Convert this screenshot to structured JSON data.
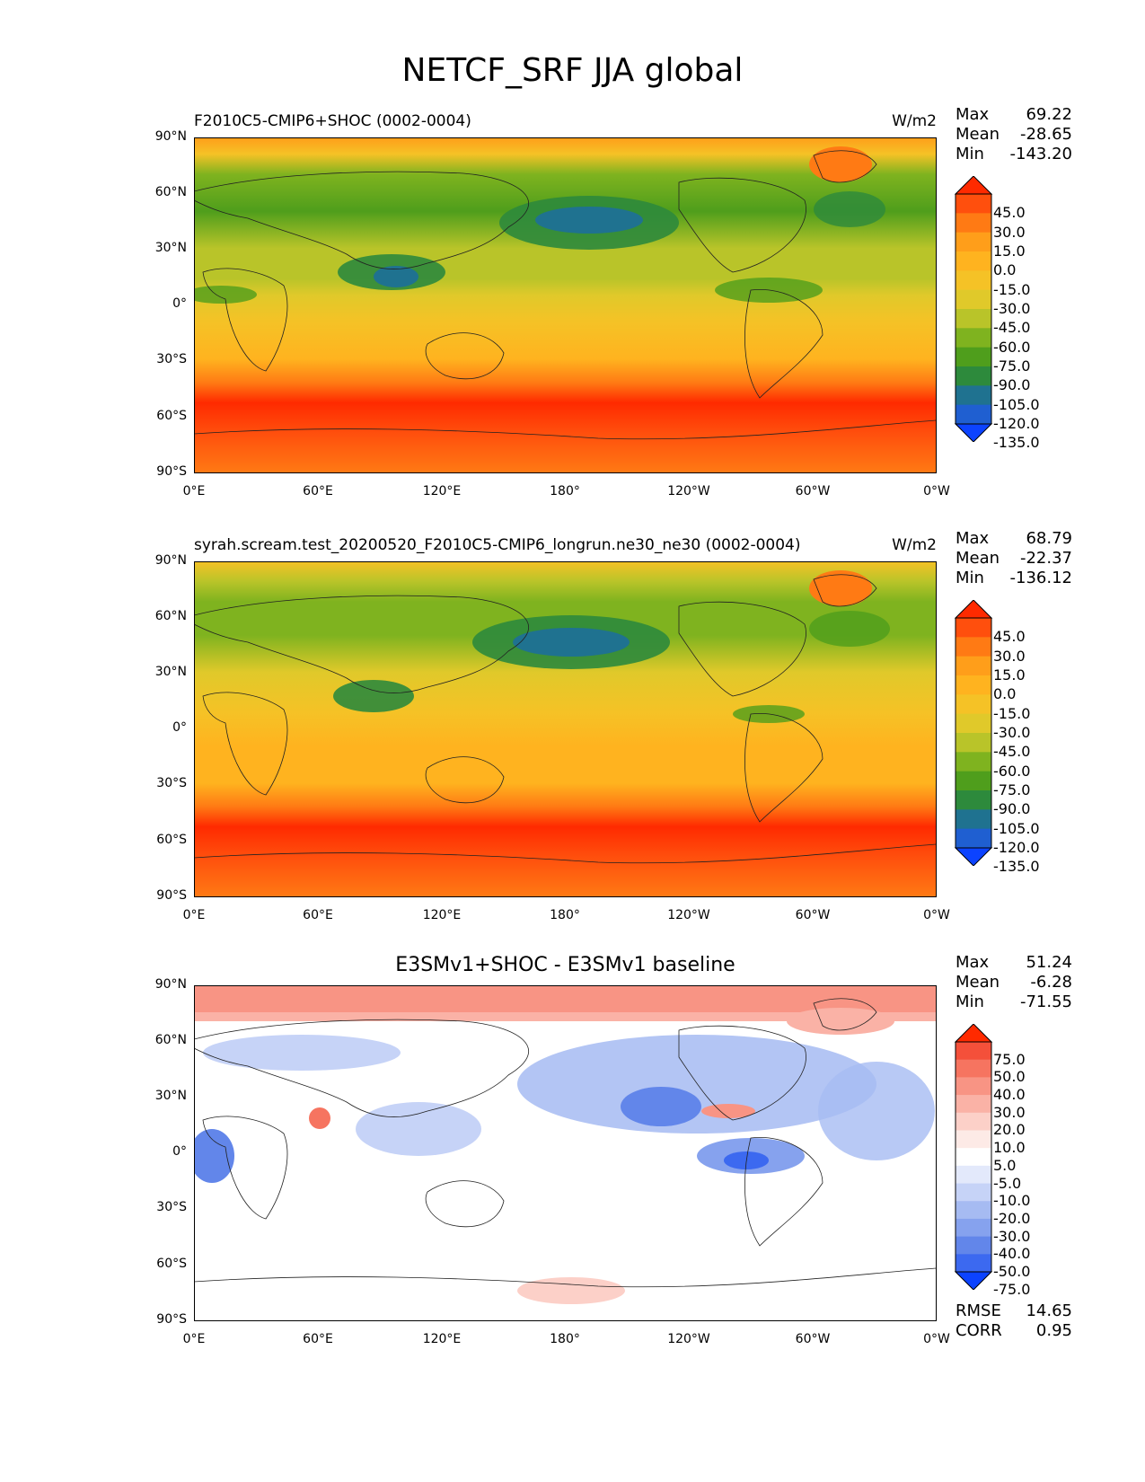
{
  "title": "NETCF_SRF JJA global",
  "x_ticks": [
    "0°E",
    "60°E",
    "120°E",
    "180°",
    "120°W",
    "60°W",
    "0°W"
  ],
  "y_ticks": [
    "90°N",
    "60°N",
    "30°N",
    "0°",
    "30°S",
    "60°S",
    "90°S"
  ],
  "panels": [
    {
      "title_left": "F2010C5-CMIP6+SHOC (0002-0004)",
      "units": "W/m2",
      "stats": [
        [
          "Max",
          "69.22"
        ],
        [
          "Mean",
          "-28.65"
        ],
        [
          "Min",
          "-143.20"
        ]
      ],
      "colorbar": {
        "labels": [
          "45.0",
          "30.0",
          "15.0",
          "0.0",
          "-15.0",
          "-30.0",
          "-45.0",
          "-60.0",
          "-75.0",
          "-90.0",
          "-105.0",
          "-120.0",
          "-135.0"
        ],
        "colors": [
          "#ff2a00",
          "#ff4f0d",
          "#ff7a14",
          "#ff9e1a",
          "#ffb31f",
          "#f5c226",
          "#e0c92a",
          "#b9c429",
          "#7fb31f",
          "#4f9e1c",
          "#2d8a3c",
          "#1f7290",
          "#1f5fd1",
          "#0c43ff"
        ]
      }
    },
    {
      "title_left": "syrah.scream.test_20200520_F2010C5-CMIP6_longrun.ne30_ne30 (0002-0004)",
      "units": "W/m2",
      "stats": [
        [
          "Max",
          "68.79"
        ],
        [
          "Mean",
          "-22.37"
        ],
        [
          "Min",
          "-136.12"
        ]
      ],
      "colorbar": {
        "labels": [
          "45.0",
          "30.0",
          "15.0",
          "0.0",
          "-15.0",
          "-30.0",
          "-45.0",
          "-60.0",
          "-75.0",
          "-90.0",
          "-105.0",
          "-120.0",
          "-135.0"
        ],
        "colors": [
          "#ff2a00",
          "#ff4f0d",
          "#ff7a14",
          "#ff9e1a",
          "#ffb31f",
          "#f5c226",
          "#e0c92a",
          "#b9c429",
          "#7fb31f",
          "#4f9e1c",
          "#2d8a3c",
          "#1f7290",
          "#1f5fd1",
          "#0c43ff"
        ]
      }
    },
    {
      "title_center": "E3SMv1+SHOC - E3SMv1 baseline",
      "stats": [
        [
          "Max",
          "51.24"
        ],
        [
          "Mean",
          "-6.28"
        ],
        [
          "Min",
          "-71.55"
        ]
      ],
      "extra_stats": [
        [
          "RMSE",
          "14.65"
        ],
        [
          "CORR",
          "0.95"
        ]
      ],
      "colorbar": {
        "labels": [
          "75.0",
          "50.0",
          "40.0",
          "30.0",
          "20.0",
          "10.0",
          "5.0",
          "-5.0",
          "-10.0",
          "-20.0",
          "-30.0",
          "-40.0",
          "-50.0",
          "-75.0"
        ],
        "colors": [
          "#ff2a00",
          "#f4503a",
          "#f67460",
          "#f89484",
          "#fab2a6",
          "#fcd0c8",
          "#fdeae6",
          "#ffffff",
          "#e3e9fb",
          "#c6d3f7",
          "#a6bbf2",
          "#86a2ee",
          "#6286ea",
          "#3c69f0",
          "#0c43ff"
        ]
      }
    }
  ]
}
